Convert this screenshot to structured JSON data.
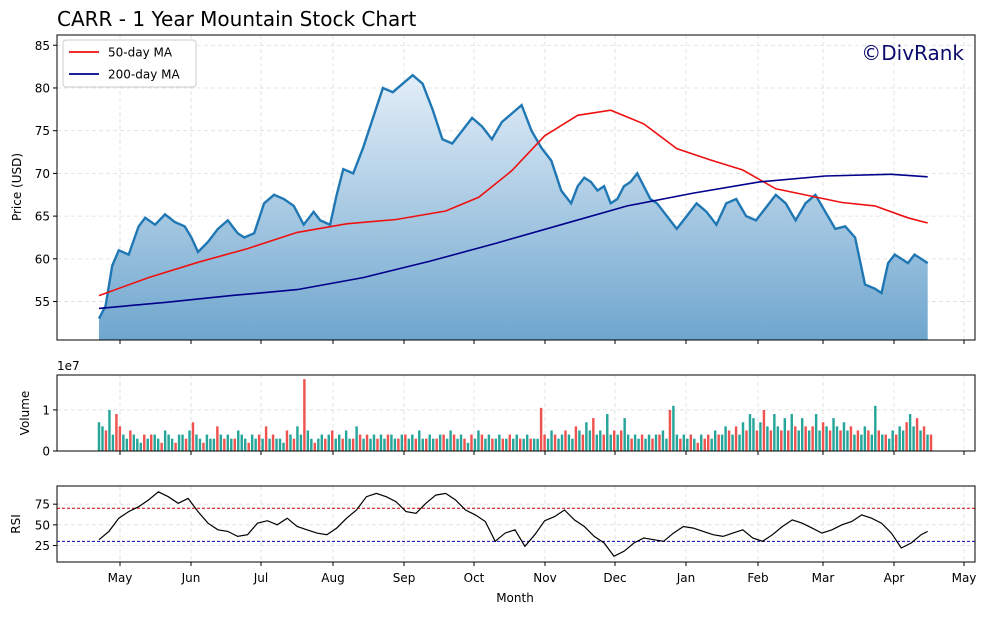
{
  "colors": {
    "price_line": "#1f77b4",
    "fill_top": "#e3eef8",
    "fill_bottom": "#6fa6ce",
    "ma50": "#ee1111",
    "ma200": "#00008b",
    "vol_up": "#26a69a",
    "vol_down": "#ef5350",
    "rsi_line": "#000000",
    "rsi_over": "#cc0000",
    "rsi_under": "#0000aa",
    "watermark": "#0b0b6e",
    "grid": "#dddddd"
  },
  "chart_data": {
    "type": "line",
    "title": "CARR - 1 Year Mountain Stock Chart",
    "watermark": "©DivRank",
    "xlabel": "Month",
    "x_tick_labels": [
      "May",
      "Jun",
      "Jul",
      "Aug",
      "Sep",
      "Oct",
      "Nov",
      "Dec",
      "Jan",
      "Feb",
      "Mar",
      "Apr",
      "May"
    ],
    "price_panel": {
      "ylabel": "Price (USD)",
      "ylim": [
        50.5,
        86.2
      ],
      "y_ticks": [
        55,
        60,
        65,
        70,
        75,
        80,
        85
      ],
      "grid": true,
      "legend_position": "top-left",
      "legend": [
        "50-day MA",
        "200-day MA"
      ],
      "x_range": [
        0,
        252
      ],
      "price": {
        "x": [
          0,
          2,
          4,
          6,
          9,
          12,
          14,
          17,
          20,
          23,
          26,
          28,
          30,
          33,
          36,
          39,
          42,
          44,
          47,
          50,
          53,
          56,
          59,
          62,
          65,
          67,
          70,
          72,
          74,
          77,
          80,
          83,
          86,
          89,
          92,
          95,
          98,
          101,
          104,
          107,
          110,
          113,
          116,
          119,
          122,
          125,
          128,
          131,
          134,
          137,
          140,
          143,
          145,
          147,
          149,
          151,
          153,
          155,
          157,
          159,
          161,
          163,
          165,
          167,
          169,
          171,
          173,
          175,
          178,
          181,
          184,
          187,
          190,
          193,
          196,
          199,
          202,
          205,
          208,
          211,
          214,
          217,
          220,
          223,
          226,
          229,
          232,
          235,
          237,
          239,
          241,
          243,
          245,
          247,
          249,
          251
        ],
        "values": [
          53.0,
          54.5,
          59.2,
          61.0,
          60.5,
          63.8,
          64.8,
          64.0,
          65.2,
          64.3,
          63.8,
          62.5,
          60.8,
          62.0,
          63.5,
          64.5,
          63.0,
          62.5,
          63.0,
          66.5,
          67.5,
          67.0,
          66.2,
          64.0,
          65.5,
          64.5,
          64.0,
          67.5,
          70.5,
          70.0,
          73.0,
          76.5,
          80.0,
          79.5,
          80.5,
          81.5,
          80.5,
          77.5,
          74.0,
          73.5,
          75.0,
          76.5,
          75.5,
          74.0,
          76.0,
          77.0,
          78.0,
          75.0,
          73.0,
          71.5,
          68.0,
          66.5,
          68.5,
          69.5,
          69.0,
          68.0,
          68.5,
          66.5,
          67.0,
          68.5,
          69.0,
          70.0,
          68.5,
          67.0,
          66.5,
          65.5,
          64.5,
          63.5,
          65.0,
          66.5,
          65.5,
          64.0,
          66.5,
          67.0,
          65.0,
          64.5,
          66.0,
          67.5,
          66.5,
          64.5,
          66.5,
          67.5,
          65.5,
          63.5,
          63.8,
          62.5,
          57.0,
          56.5,
          56.0,
          59.5,
          60.5,
          60.0,
          59.5,
          60.5,
          60.0,
          59.5
        ]
      },
      "ma50": {
        "x": [
          0,
          15,
          30,
          45,
          60,
          75,
          90,
          105,
          115,
          125,
          135,
          145,
          155,
          165,
          175,
          185,
          195,
          205,
          215,
          225,
          235,
          245,
          251
        ],
        "values": [
          55.7,
          57.8,
          59.6,
          61.2,
          63.1,
          64.1,
          64.6,
          65.6,
          67.2,
          70.3,
          74.4,
          76.8,
          77.4,
          75.8,
          72.9,
          71.6,
          70.4,
          68.2,
          67.4,
          66.6,
          66.2,
          64.8,
          64.2
        ]
      },
      "ma200": {
        "x": [
          0,
          20,
          40,
          60,
          80,
          100,
          120,
          140,
          160,
          180,
          200,
          220,
          240,
          251
        ],
        "values": [
          54.2,
          54.9,
          55.7,
          56.4,
          57.8,
          59.7,
          61.8,
          64.0,
          66.2,
          67.7,
          69.0,
          69.7,
          69.9,
          69.6
        ]
      }
    },
    "volume_panel": {
      "ylabel": "Volume",
      "y_scale_label": "1e7",
      "y_ticks": [
        0,
        1
      ],
      "ymax": 1.85,
      "units": "x 1e7 shares",
      "values": [
        0.7,
        0.6,
        0.5,
        1.0,
        0.4,
        0.9,
        0.6,
        0.4,
        0.3,
        0.5,
        0.4,
        0.3,
        0.2,
        0.4,
        0.3,
        0.4,
        0.4,
        0.3,
        0.2,
        0.5,
        0.4,
        0.3,
        0.2,
        0.4,
        0.4,
        0.3,
        0.5,
        0.7,
        0.4,
        0.3,
        0.2,
        0.4,
        0.3,
        0.3,
        0.6,
        0.4,
        0.3,
        0.4,
        0.3,
        0.3,
        0.5,
        0.4,
        0.3,
        0.2,
        0.4,
        0.3,
        0.4,
        0.3,
        0.6,
        0.3,
        0.4,
        0.3,
        0.3,
        0.2,
        0.5,
        0.4,
        0.3,
        0.6,
        0.4,
        1.75,
        0.5,
        0.3,
        0.2,
        0.3,
        0.4,
        0.3,
        0.4,
        0.5,
        0.3,
        0.4,
        0.3,
        0.5,
        0.3,
        0.3,
        0.6,
        0.4,
        0.3,
        0.4,
        0.3,
        0.4,
        0.3,
        0.4,
        0.3,
        0.4,
        0.4,
        0.3,
        0.3,
        0.4,
        0.4,
        0.3,
        0.4,
        0.3,
        0.5,
        0.3,
        0.3,
        0.4,
        0.3,
        0.3,
        0.4,
        0.4,
        0.3,
        0.5,
        0.4,
        0.3,
        0.4,
        0.3,
        0.2,
        0.4,
        0.3,
        0.5,
        0.4,
        0.3,
        0.4,
        0.3,
        0.3,
        0.4,
        0.3,
        0.3,
        0.4,
        0.3,
        0.4,
        0.3,
        0.3,
        0.4,
        0.3,
        0.3,
        0.3,
        1.05,
        0.4,
        0.3,
        0.5,
        0.4,
        0.3,
        0.4,
        0.5,
        0.4,
        0.3,
        0.6,
        0.5,
        0.4,
        0.7,
        0.5,
        0.8,
        0.4,
        0.5,
        0.4,
        0.9,
        0.4,
        0.5,
        0.4,
        0.5,
        0.8,
        0.4,
        0.3,
        0.4,
        0.3,
        0.4,
        0.3,
        0.4,
        0.3,
        0.4,
        0.4,
        0.5,
        0.3,
        1.0,
        1.1,
        0.4,
        0.3,
        0.4,
        0.3,
        0.4,
        0.3,
        0.2,
        0.4,
        0.3,
        0.4,
        0.3,
        0.5,
        0.4,
        0.4,
        0.6,
        0.5,
        0.4,
        0.6,
        0.4,
        0.7,
        0.5,
        0.9,
        0.8,
        0.5,
        0.7,
        1.0,
        0.6,
        0.5,
        0.9,
        0.6,
        0.5,
        0.8,
        0.5,
        0.9,
        0.6,
        0.5,
        0.8,
        0.6,
        0.5,
        0.6,
        0.9,
        0.5,
        0.7,
        0.6,
        0.5,
        0.8,
        0.6,
        0.5,
        0.7,
        0.5,
        0.6,
        0.4,
        0.5,
        0.4,
        0.6,
        0.5,
        0.4,
        1.1,
        0.5,
        0.4,
        0.4,
        0.3,
        0.5,
        0.4,
        0.6,
        0.5,
        0.7,
        0.9,
        0.6,
        0.8,
        0.5,
        0.6,
        0.4,
        0.4
      ],
      "down_days": [
        2,
        5,
        6,
        9,
        13,
        15,
        18,
        22,
        25,
        27,
        30,
        34,
        36,
        39,
        43,
        46,
        48,
        50,
        54,
        56,
        59,
        62,
        65,
        67,
        70,
        73,
        75,
        77,
        80,
        83,
        86,
        88,
        91,
        94,
        97,
        99,
        102,
        105,
        107,
        110,
        113,
        116,
        118,
        121,
        124,
        127,
        128,
        131,
        134,
        137,
        139,
        142,
        145,
        148,
        150,
        153,
        156,
        159,
        161,
        164,
        167,
        170,
        172,
        174,
        175,
        178,
        181,
        183,
        186,
        189,
        191,
        193,
        196,
        198,
        200,
        203,
        205,
        208,
        210,
        213,
        216,
        218,
        221,
        224,
        226,
        229,
        232,
        235,
        237,
        239,
        242,
        245,
        248
      ]
    },
    "rsi_panel": {
      "ylabel": "RSI",
      "ylim": [
        5,
        97
      ],
      "y_ticks": [
        25,
        50,
        75
      ],
      "overbought": 70,
      "oversold": 30,
      "x": [
        0,
        3,
        6,
        9,
        12,
        15,
        18,
        21,
        24,
        27,
        30,
        33,
        36,
        39,
        42,
        45,
        48,
        51,
        54,
        57,
        60,
        63,
        66,
        69,
        72,
        75,
        78,
        81,
        84,
        87,
        90,
        93,
        96,
        99,
        102,
        105,
        108,
        111,
        114,
        117,
        120,
        123,
        126,
        129,
        132,
        135,
        138,
        141,
        144,
        147,
        150,
        153,
        156,
        159,
        162,
        165,
        168,
        171,
        174,
        177,
        180,
        183,
        186,
        189,
        192,
        195,
        198,
        201,
        204,
        207,
        210,
        213,
        216,
        219,
        222,
        225,
        228,
        231,
        234,
        237,
        240,
        243,
        246,
        249,
        251
      ],
      "values": [
        32,
        42,
        58,
        66,
        72,
        80,
        90,
        84,
        76,
        82,
        66,
        52,
        44,
        42,
        36,
        38,
        52,
        55,
        50,
        58,
        48,
        44,
        40,
        38,
        46,
        58,
        68,
        84,
        88,
        84,
        78,
        66,
        64,
        76,
        86,
        88,
        80,
        68,
        62,
        54,
        30,
        40,
        44,
        24,
        38,
        55,
        60,
        68,
        56,
        48,
        36,
        28,
        12,
        18,
        28,
        34,
        32,
        30,
        40,
        48,
        46,
        42,
        38,
        36,
        40,
        44,
        34,
        30,
        38,
        48,
        56,
        52,
        46,
        40,
        44,
        50,
        54,
        62,
        58,
        52,
        40,
        22,
        28,
        38,
        42
      ]
    }
  }
}
